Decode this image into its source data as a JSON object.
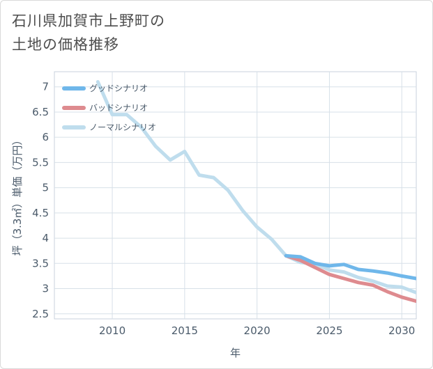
{
  "title": {
    "line1": "石川県加賀市上野町の",
    "line2": "土地の価格推移"
  },
  "chart_data": {
    "type": "line",
    "xlabel": "年",
    "ylabel": "坪（3.3㎡）単価（万円）",
    "xlim": [
      2006,
      2031
    ],
    "ylim": [
      2.4,
      7.3
    ],
    "xticks": [
      2010,
      2015,
      2020,
      2025,
      2030
    ],
    "yticks": [
      2.5,
      3,
      3.5,
      4,
      4.5,
      5,
      5.5,
      6,
      6.5,
      7
    ],
    "grid": true,
    "legend_position": "top-left",
    "series": [
      {
        "name": "グッドシナリオ",
        "color": "#6fb7ea",
        "x": [
          2022,
          2023,
          2024,
          2025,
          2026,
          2027,
          2028,
          2029,
          2030,
          2031
        ],
        "y": [
          3.65,
          3.63,
          3.5,
          3.45,
          3.48,
          3.38,
          3.35,
          3.31,
          3.25,
          3.2
        ]
      },
      {
        "name": "バッドシナリオ",
        "color": "#de8b8f",
        "x": [
          2022,
          2023,
          2024,
          2025,
          2026,
          2027,
          2028,
          2029,
          2030,
          2031
        ],
        "y": [
          3.65,
          3.56,
          3.42,
          3.28,
          3.2,
          3.12,
          3.07,
          2.94,
          2.83,
          2.75
        ]
      },
      {
        "name": "ノーマルシナリオ",
        "color": "#bfdded",
        "x": [
          2009,
          2010,
          2011,
          2012,
          2013,
          2014,
          2015,
          2016,
          2017,
          2018,
          2019,
          2020,
          2021,
          2022,
          2023,
          2024,
          2025,
          2026,
          2027,
          2028,
          2029,
          2030,
          2031
        ],
        "y": [
          7.1,
          6.45,
          6.45,
          6.2,
          5.82,
          5.55,
          5.72,
          5.25,
          5.2,
          4.95,
          4.55,
          4.22,
          3.98,
          3.65,
          3.52,
          3.49,
          3.37,
          3.33,
          3.22,
          3.15,
          3.05,
          3.03,
          2.92
        ]
      }
    ]
  }
}
